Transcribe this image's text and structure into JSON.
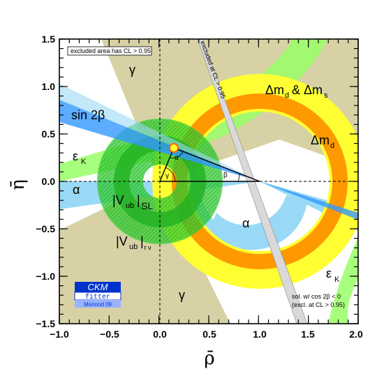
{
  "chart_data": {
    "type": "scatter",
    "xlabel": "ρ̄",
    "ylabel": "η̄",
    "xlim": [
      -1.0,
      2.0
    ],
    "ylim": [
      -1.5,
      1.5
    ],
    "x_ticks": [
      -1.0,
      -0.5,
      0.0,
      0.5,
      1.0,
      1.5,
      2.0
    ],
    "y_ticks": [
      -1.5,
      -1.0,
      -0.5,
      0.0,
      0.5,
      1.0,
      1.5
    ],
    "x_tick_labels": [
      "−1.0",
      "−0.5",
      "0.0",
      "0.5",
      "1.0",
      "1.5",
      "2.0"
    ],
    "y_tick_labels": [
      "−1.5",
      "−1.0",
      "−0.5",
      "0.0",
      "0.5",
      "1.0",
      "1.5"
    ],
    "grid": false,
    "apex": [
      0.14,
      0.34
    ],
    "constraints": [
      {
        "label": "Δm_d & Δm_s",
        "kind": "annulus",
        "center": [
          1.0,
          0.0
        ],
        "radius_95": [
          0.62,
          1.08
        ],
        "radius_68": [
          0.72,
          0.94
        ],
        "color_outer": "#ffff33",
        "color_inner": "#ff9900"
      },
      {
        "label": "Δm_d",
        "kind": "annulus",
        "center": [
          1.0,
          0.0
        ],
        "radius_95": [
          0.95,
          1.08
        ],
        "color": "#ffff33"
      },
      {
        "label": "|V_ub|_SL",
        "kind": "annulus",
        "center": [
          0.0,
          0.0
        ],
        "radius_95": [
          0.25,
          0.63
        ],
        "radius_68": [
          0.33,
          0.45
        ],
        "color": "#33cc33"
      },
      {
        "label": "|V_ub|_τν",
        "kind": "annulus",
        "center": [
          0.0,
          0.0
        ],
        "radius_95": [
          0.18,
          0.63
        ],
        "color": "#33cc33"
      },
      {
        "label": "sin 2β",
        "kind": "wedge",
        "vertex": [
          1.0,
          0.0
        ],
        "slope_range": [
          -0.4,
          -0.34
        ],
        "color": "#3399ff"
      },
      {
        "label": "α",
        "kind": "region",
        "color": "#99d9f5"
      },
      {
        "label": "γ",
        "kind": "region",
        "color": "#d7d1a5"
      },
      {
        "label": "ε_K",
        "kind": "hyperbolic-band",
        "color": "#99ff66"
      }
    ],
    "annotations": [
      {
        "text": "γ",
        "x": -0.17,
        "y": 1.08
      },
      {
        "text": "γ",
        "x": 0.08,
        "y": -1.12
      },
      {
        "text": "α",
        "x": -0.88,
        "y": -0.1
      },
      {
        "text": "α",
        "x": 0.88,
        "y": -0.4
      },
      {
        "text": "β",
        "x": 0.67,
        "y": 0.06
      },
      {
        "text": "α",
        "x": 0.16,
        "y": 0.23
      },
      {
        "text": "γ",
        "x": 0.07,
        "y": 0.04
      },
      {
        "text": "sin 2β",
        "x": -0.72,
        "y": 0.62
      },
      {
        "text": "ε",
        "sub": "K",
        "x": -0.95,
        "y": 0.22
      },
      {
        "text": "ε",
        "sub": "K",
        "x": 1.55,
        "y": -0.98
      },
      {
        "text": "Δm",
        "sub": "d",
        "x": 1.48,
        "y": 0.42
      },
      {
        "text": "Δm",
        "sub": "d",
        "sup2": "Δm",
        "sub2": "s",
        "x": 1.03,
        "y": 0.92
      },
      {
        "text": "|V",
        "sub": "ub",
        "tail": "|",
        "sub2": "SL",
        "x": -0.55,
        "y": -0.2
      },
      {
        "text": "|V",
        "sub": "ub",
        "tail": "|",
        "sub2": "τ ν",
        "x": -0.45,
        "y": -0.62
      }
    ]
  },
  "legend_box_text": "excluded area has CL > 0.95",
  "exclusion_band_text": "excluded at CL > 0.95",
  "note_line1": "sol. w/ cos 2β < 0",
  "note_line2": "(excl. at CL > 0.95)",
  "logo": {
    "line1": "CKM",
    "line2": "fitter",
    "line3": "Moriond 09",
    "color_main": "#0033cc",
    "color_light": "#99b3ff"
  },
  "colors": {
    "gamma_region": "#d7d1a5",
    "alpha_region": "#99d9f5",
    "dm_yellow": "#ffff33",
    "dm_orange": "#ff9900",
    "vub_green": "#33cc33",
    "sin2b_blue": "#3399ff",
    "epsK_green": "#99ff66",
    "exclusion_grey": "#cccccc"
  }
}
